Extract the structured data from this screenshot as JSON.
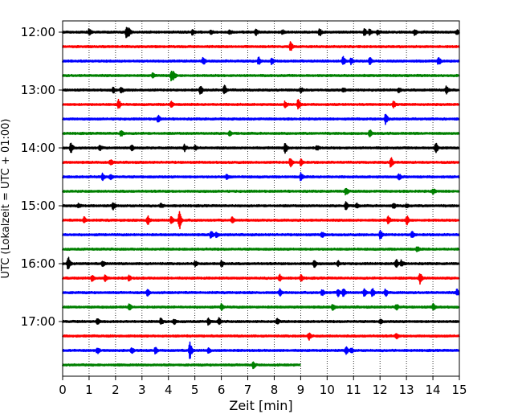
{
  "chart_data": {
    "type": "line",
    "title": "",
    "xlabel": "Zeit  [min]",
    "ylabel": "UTC (Lokalzeit = UTC + 01:00)",
    "xlim": [
      0,
      15
    ],
    "x_ticks": [
      0,
      1,
      2,
      3,
      4,
      5,
      6,
      7,
      8,
      9,
      10,
      11,
      12,
      13,
      14,
      15
    ],
    "y_tick_labels": [
      "12:00",
      "13:00",
      "14:00",
      "15:00",
      "16:00",
      "17:00"
    ],
    "grid": "vertical dotted lines at each minute",
    "line_interval_minutes": 15,
    "line_colors": [
      "#000000",
      "#ff0000",
      "#0000ff",
      "#008000"
    ],
    "traces": [
      {
        "time": "12:00",
        "color": "#000000",
        "end_min": 15,
        "events": [
          [
            1.0,
            0.5
          ],
          [
            2.4,
            0.85
          ],
          [
            2.5,
            0.6
          ],
          [
            4.9,
            0.4
          ],
          [
            5.6,
            0.3
          ],
          [
            6.3,
            0.3
          ],
          [
            7.3,
            0.5
          ],
          [
            8.3,
            0.3
          ],
          [
            9.7,
            0.6
          ],
          [
            11.4,
            0.6
          ],
          [
            11.6,
            0.45
          ],
          [
            11.9,
            0.4
          ],
          [
            13.3,
            0.5
          ],
          [
            14.9,
            0.3
          ]
        ]
      },
      {
        "time": "12:15",
        "color": "#ff0000",
        "end_min": 15,
        "events": [
          [
            8.6,
            0.8
          ]
        ]
      },
      {
        "time": "12:30",
        "color": "#0000ff",
        "end_min": 15,
        "events": [
          [
            5.3,
            0.6
          ],
          [
            7.4,
            0.6
          ],
          [
            7.9,
            0.5
          ],
          [
            10.6,
            0.7
          ],
          [
            10.9,
            0.5
          ],
          [
            11.6,
            0.6
          ],
          [
            14.2,
            0.6
          ]
        ]
      },
      {
        "time": "12:45",
        "color": "#008000",
        "end_min": 15,
        "events": [
          [
            3.4,
            0.3
          ],
          [
            4.1,
            0.8
          ],
          [
            4.2,
            0.5
          ]
        ]
      },
      {
        "time": "13:00",
        "color": "#000000",
        "end_min": 15,
        "events": [
          [
            1.9,
            0.4
          ],
          [
            2.2,
            0.45
          ],
          [
            5.2,
            0.7
          ],
          [
            6.1,
            0.8
          ],
          [
            9.0,
            0.4
          ],
          [
            10.6,
            0.3
          ],
          [
            12.7,
            0.4
          ],
          [
            14.5,
            0.6
          ]
        ]
      },
      {
        "time": "13:15",
        "color": "#ff0000",
        "end_min": 15,
        "events": [
          [
            2.1,
            0.8
          ],
          [
            4.1,
            0.5
          ],
          [
            8.4,
            0.45
          ],
          [
            8.9,
            0.9
          ],
          [
            12.5,
            0.5
          ]
        ]
      },
      {
        "time": "13:30",
        "color": "#0000ff",
        "end_min": 15,
        "events": [
          [
            3.6,
            0.6
          ],
          [
            12.2,
            0.8
          ]
        ]
      },
      {
        "time": "13:45",
        "color": "#008000",
        "end_min": 15,
        "events": [
          [
            2.2,
            0.5
          ],
          [
            6.3,
            0.4
          ],
          [
            11.6,
            0.7
          ]
        ]
      },
      {
        "time": "14:00",
        "color": "#000000",
        "end_min": 15,
        "events": [
          [
            0.3,
            0.8
          ],
          [
            1.4,
            0.4
          ],
          [
            2.6,
            0.4
          ],
          [
            4.6,
            0.5
          ],
          [
            5.0,
            0.3
          ],
          [
            8.4,
            0.9
          ],
          [
            9.6,
            0.4
          ],
          [
            14.1,
            0.8
          ]
        ]
      },
      {
        "time": "14:15",
        "color": "#ff0000",
        "end_min": 15,
        "events": [
          [
            1.8,
            0.4
          ],
          [
            8.6,
            0.8
          ],
          [
            9.0,
            0.5
          ],
          [
            12.4,
            0.8
          ]
        ]
      },
      {
        "time": "14:30",
        "color": "#0000ff",
        "end_min": 15,
        "events": [
          [
            1.5,
            0.5
          ],
          [
            1.8,
            0.45
          ],
          [
            6.2,
            0.4
          ],
          [
            9.0,
            0.6
          ],
          [
            12.7,
            0.5
          ]
        ]
      },
      {
        "time": "14:45",
        "color": "#008000",
        "end_min": 15,
        "events": [
          [
            10.7,
            0.6
          ],
          [
            14.0,
            0.45
          ]
        ]
      },
      {
        "time": "15:00",
        "color": "#000000",
        "end_min": 15,
        "events": [
          [
            0.6,
            0.3
          ],
          [
            1.9,
            0.6
          ],
          [
            3.7,
            0.3
          ],
          [
            10.7,
            0.7
          ],
          [
            11.1,
            0.4
          ],
          [
            12.5,
            0.4
          ],
          [
            13.0,
            0.3
          ]
        ]
      },
      {
        "time": "15:15",
        "color": "#ff0000",
        "end_min": 15,
        "events": [
          [
            0.8,
            0.5
          ],
          [
            3.2,
            0.8
          ],
          [
            4.1,
            0.6
          ],
          [
            4.4,
            1.6
          ],
          [
            6.4,
            0.5
          ],
          [
            12.3,
            0.6
          ],
          [
            13.0,
            0.8
          ]
        ]
      },
      {
        "time": "15:30",
        "color": "#0000ff",
        "end_min": 15,
        "events": [
          [
            5.6,
            0.6
          ],
          [
            5.8,
            0.4
          ],
          [
            9.8,
            0.4
          ],
          [
            12.0,
            0.7
          ],
          [
            13.2,
            0.6
          ]
        ]
      },
      {
        "time": "15:45",
        "color": "#008000",
        "end_min": 15,
        "events": [
          [
            13.4,
            0.4
          ]
        ]
      },
      {
        "time": "16:00",
        "color": "#000000",
        "end_min": 15,
        "events": [
          [
            0.2,
            1.2
          ],
          [
            1.5,
            0.4
          ],
          [
            5.0,
            0.4
          ],
          [
            6.0,
            0.5
          ],
          [
            9.5,
            0.6
          ],
          [
            10.4,
            0.4
          ],
          [
            12.6,
            0.7
          ],
          [
            12.8,
            0.5
          ]
        ]
      },
      {
        "time": "16:15",
        "color": "#ff0000",
        "end_min": 15,
        "events": [
          [
            1.1,
            0.5
          ],
          [
            1.6,
            0.5
          ],
          [
            2.5,
            0.5
          ],
          [
            8.2,
            0.5
          ],
          [
            9.0,
            0.5
          ],
          [
            13.5,
            0.9
          ]
        ]
      },
      {
        "time": "16:30",
        "color": "#0000ff",
        "end_min": 15,
        "events": [
          [
            3.2,
            0.6
          ],
          [
            8.2,
            0.6
          ],
          [
            9.8,
            0.5
          ],
          [
            10.4,
            0.6
          ],
          [
            10.6,
            0.8
          ],
          [
            11.4,
            0.6
          ],
          [
            11.7,
            0.7
          ],
          [
            12.2,
            0.6
          ],
          [
            14.9,
            0.5
          ]
        ]
      },
      {
        "time": "16:45",
        "color": "#008000",
        "end_min": 15,
        "events": [
          [
            2.5,
            0.55
          ],
          [
            6.0,
            0.5
          ],
          [
            10.2,
            0.5
          ],
          [
            12.6,
            0.5
          ],
          [
            14.0,
            0.5
          ]
        ]
      },
      {
        "time": "17:00",
        "color": "#000000",
        "end_min": 15,
        "events": [
          [
            1.3,
            0.5
          ],
          [
            3.7,
            0.5
          ],
          [
            4.2,
            0.4
          ],
          [
            5.5,
            0.5
          ],
          [
            5.9,
            0.5
          ],
          [
            8.1,
            0.4
          ],
          [
            12.0,
            0.3
          ]
        ]
      },
      {
        "time": "17:15",
        "color": "#ff0000",
        "end_min": 15,
        "events": [
          [
            9.3,
            0.6
          ],
          [
            12.6,
            0.4
          ]
        ]
      },
      {
        "time": "17:30",
        "color": "#0000ff",
        "end_min": 15,
        "events": [
          [
            1.3,
            0.5
          ],
          [
            2.6,
            0.5
          ],
          [
            3.5,
            0.5
          ],
          [
            4.8,
            1.4
          ],
          [
            5.5,
            0.4
          ],
          [
            10.7,
            0.6
          ],
          [
            10.9,
            0.4
          ]
        ]
      },
      {
        "time": "17:45",
        "color": "#008000",
        "end_min": 9,
        "events": [
          [
            7.2,
            0.5
          ]
        ]
      }
    ]
  }
}
